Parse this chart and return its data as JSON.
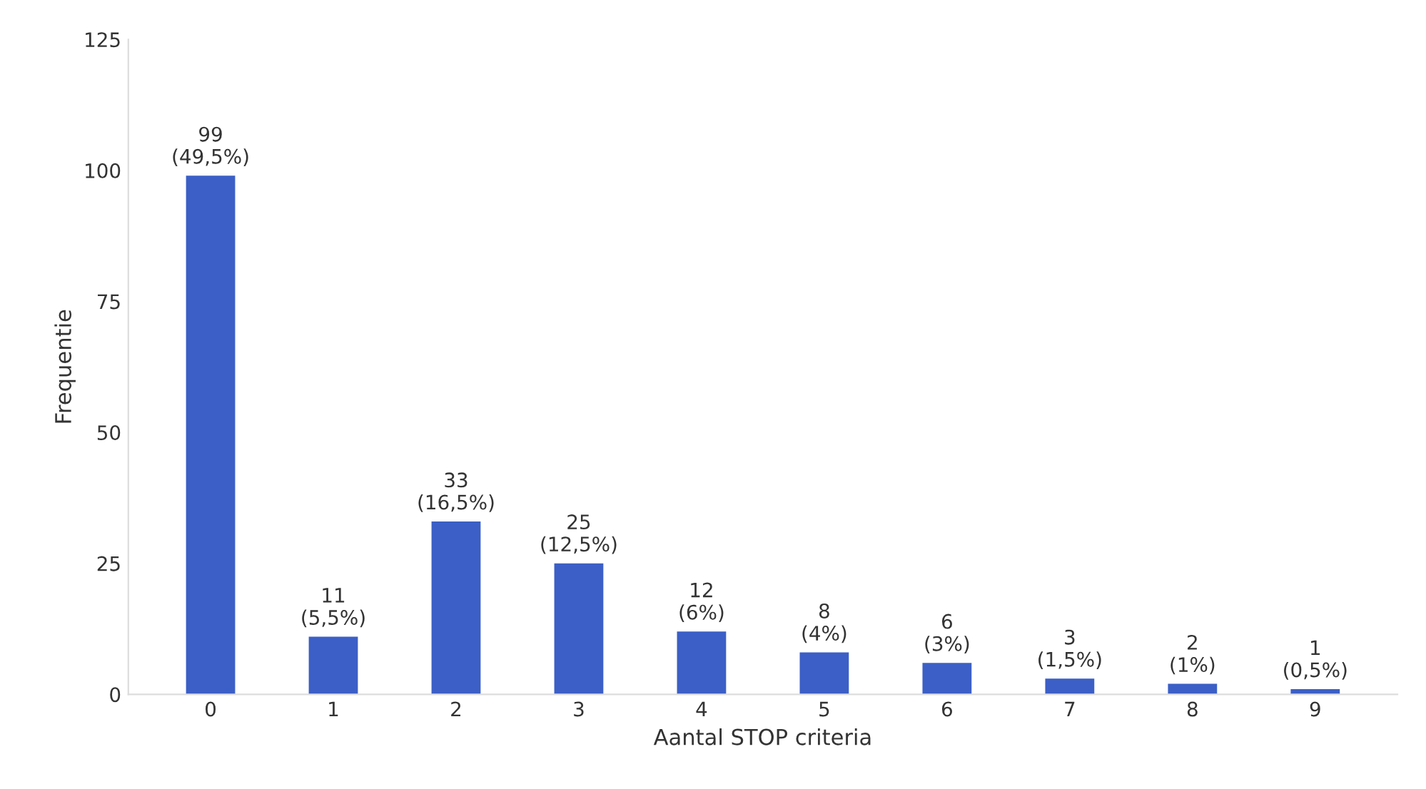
{
  "chart_data": {
    "type": "bar",
    "xlabel": "Aantal STOP criteria",
    "ylabel": "Frequentie",
    "categories": [
      "0",
      "1",
      "2",
      "3",
      "4",
      "5",
      "6",
      "7",
      "8",
      "9"
    ],
    "values": [
      99,
      11,
      33,
      25,
      12,
      8,
      6,
      3,
      2,
      1
    ],
    "value_labels": [
      "99\n(49,5%)",
      "11\n(5,5%)",
      "33\n(16,5%)",
      "25\n(12,5%)",
      "12\n(6%)",
      "8\n(4%)",
      "6\n(3%)",
      "3\n(1,5%)",
      "2\n(1%)",
      "1\n(0,5%)"
    ],
    "color": "#3b5fc6",
    "ylim": [
      0,
      125
    ],
    "yticks": [
      0,
      25,
      50,
      75,
      100,
      125
    ],
    "grid": false
  }
}
